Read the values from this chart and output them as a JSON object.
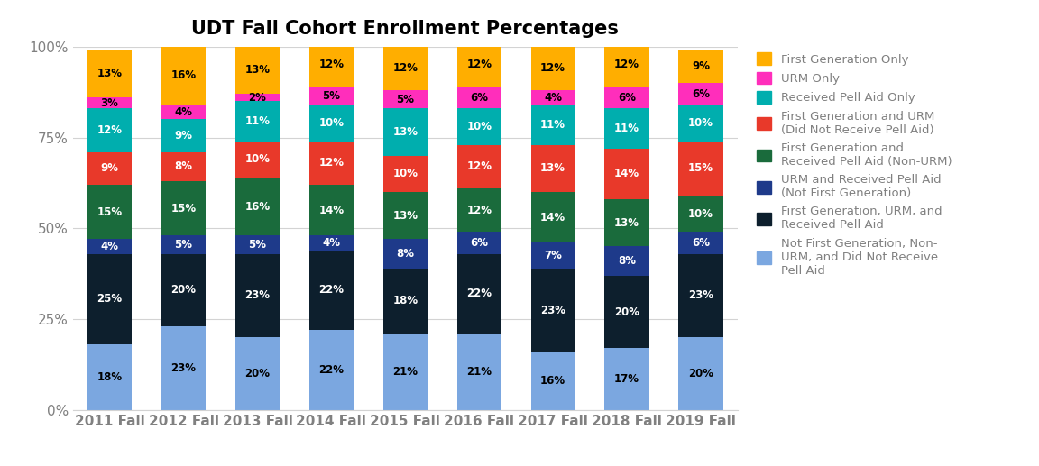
{
  "title": "UDT Fall Cohort Enrollment Percentages",
  "categories": [
    "2011 Fall",
    "2012 Fall",
    "2013 Fall",
    "2014 Fall",
    "2015 Fall",
    "2016 Fall",
    "2017 Fall",
    "2018 Fall",
    "2019 Fall"
  ],
  "series": [
    {
      "label": "Not First Generation, Non-\nURM, and Did Not Receive\nPell Aid",
      "color": "#7BA7E0",
      "values": [
        18,
        23,
        20,
        22,
        21,
        21,
        16,
        17,
        20
      ],
      "text_color": "black"
    },
    {
      "label": "First Generation, URM, and\nReceived Pell Aid",
      "color": "#0D1F2D",
      "values": [
        25,
        20,
        23,
        22,
        18,
        22,
        23,
        20,
        23
      ],
      "text_color": "white"
    },
    {
      "label": "URM and Received Pell Aid\n(Not First Generation)",
      "color": "#1E3A8A",
      "values": [
        4,
        5,
        5,
        4,
        8,
        6,
        7,
        8,
        6
      ],
      "text_color": "white"
    },
    {
      "label": "First Generation and\nReceived Pell Aid (Non-URM)",
      "color": "#1A6B3C",
      "values": [
        15,
        15,
        16,
        14,
        13,
        12,
        14,
        13,
        10
      ],
      "text_color": "white"
    },
    {
      "label": "First Generation and URM\n(Did Not Receive Pell Aid)",
      "color": "#E8392A",
      "values": [
        9,
        8,
        10,
        12,
        10,
        12,
        13,
        14,
        15
      ],
      "text_color": "white"
    },
    {
      "label": "Received Pell Aid Only",
      "color": "#00AEAE",
      "values": [
        12,
        9,
        11,
        10,
        13,
        10,
        11,
        11,
        10
      ],
      "text_color": "white"
    },
    {
      "label": "URM Only",
      "color": "#FF2EBB",
      "values": [
        3,
        4,
        2,
        5,
        5,
        6,
        4,
        6,
        6
      ],
      "text_color": "black"
    },
    {
      "label": "First Generation Only",
      "color": "#FFAE00",
      "values": [
        13,
        16,
        13,
        12,
        12,
        12,
        12,
        12,
        9
      ],
      "text_color": "black"
    }
  ],
  "ylim": [
    0,
    100
  ],
  "yticks": [
    0,
    25,
    50,
    75,
    100
  ],
  "ytick_labels": [
    "0%",
    "25%",
    "50%",
    "75%",
    "100%"
  ],
  "background_color": "#FFFFFF",
  "title_fontsize": 15,
  "bar_width": 0.6,
  "legend_labels": [
    "First Generation Only",
    "URM Only",
    "Received Pell Aid Only",
    "First Generation and URM\n(Did Not Receive Pell Aid)",
    "First Generation and\nReceived Pell Aid (Non-URM)",
    "URM and Received Pell Aid\n(Not First Generation)",
    "First Generation, URM, and\nReceived Pell Aid",
    "Not First Generation, Non-\nURM, and Did Not Receive\nPell Aid"
  ],
  "legend_colors": [
    "#FFAE00",
    "#FF2EBB",
    "#00AEAE",
    "#E8392A",
    "#1A6B3C",
    "#1E3A8A",
    "#0D1F2D",
    "#7BA7E0"
  ]
}
